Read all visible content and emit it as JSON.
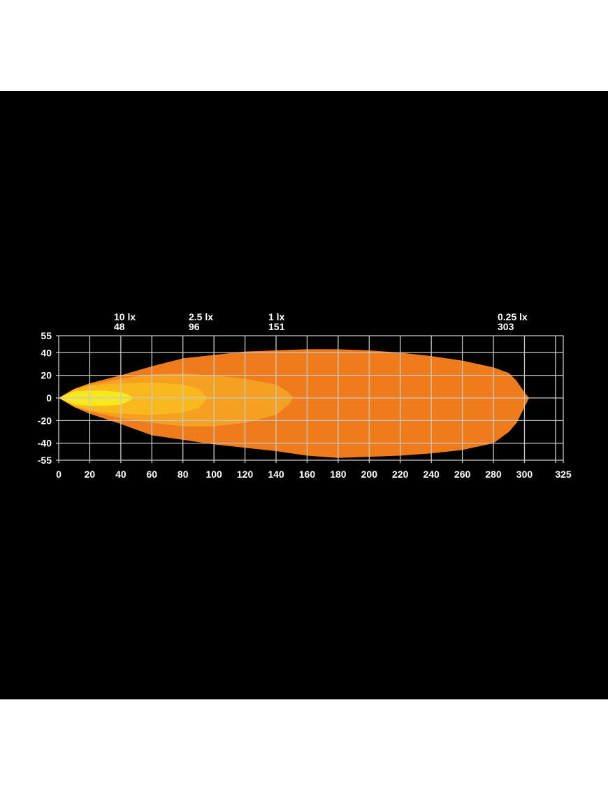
{
  "chart_data": {
    "type": "area",
    "title": "",
    "xlabel": "",
    "ylabel": "",
    "xlim": [
      0,
      325
    ],
    "ylim": [
      -55,
      55
    ],
    "x_ticks": [
      0,
      20,
      40,
      60,
      80,
      100,
      120,
      140,
      160,
      180,
      200,
      220,
      240,
      260,
      280,
      300,
      325
    ],
    "y_ticks": [
      55,
      40,
      20,
      0,
      -20,
      -40,
      -55
    ],
    "x_gridlines": [
      0,
      20,
      40,
      60,
      80,
      100,
      120,
      140,
      160,
      180,
      200,
      220,
      240,
      260,
      280,
      300,
      320,
      325
    ],
    "grid": true,
    "background": "#000000",
    "grid_color": "#c8c8c8",
    "series": [
      {
        "name": "0.25 lx",
        "reach": "303",
        "color": "#EF7B1A",
        "x": [
          0,
          10,
          20,
          40,
          60,
          80,
          100,
          120,
          140,
          160,
          180,
          200,
          220,
          240,
          260,
          280,
          290,
          295,
          300,
          303
        ],
        "top": [
          0,
          8,
          13,
          20,
          28,
          35,
          38,
          41,
          42,
          43,
          43,
          42,
          40,
          37,
          33,
          27,
          22,
          15,
          5,
          0
        ],
        "bottom": [
          0,
          -8,
          -14,
          -23,
          -33,
          -37,
          -41,
          -44,
          -47,
          -51,
          -53,
          -52,
          -51,
          -49,
          -46,
          -40,
          -30,
          -22,
          -8,
          0
        ]
      },
      {
        "name": "1 lx",
        "reach": "151",
        "color": "#F5A020",
        "x": [
          0,
          10,
          20,
          40,
          60,
          80,
          100,
          120,
          140,
          148,
          151
        ],
        "top": [
          0,
          8,
          12,
          17,
          21,
          21.5,
          20,
          17,
          12,
          5,
          0
        ],
        "bottom": [
          0,
          -8,
          -12,
          -18,
          -22,
          -25,
          -25,
          -22,
          -15,
          -6,
          0
        ]
      },
      {
        "name": "2.5 lx",
        "reach": "96",
        "color": "#F9B91C",
        "x": [
          0,
          10,
          20,
          40,
          60,
          80,
          90,
          96
        ],
        "top": [
          0,
          7,
          11,
          13,
          13.5,
          12,
          8,
          0
        ],
        "bottom": [
          0,
          -7,
          -11,
          -14,
          -15,
          -13,
          -9,
          0
        ]
      },
      {
        "name": "10 lx",
        "reach": "48",
        "color": "#F8E81E",
        "x": [
          0,
          10,
          20,
          30,
          40,
          45,
          48
        ],
        "top": [
          0,
          6,
          6.5,
          6.5,
          5,
          3,
          0
        ],
        "bottom": [
          0,
          -6,
          -7,
          -7,
          -6,
          -3,
          0
        ]
      }
    ]
  }
}
